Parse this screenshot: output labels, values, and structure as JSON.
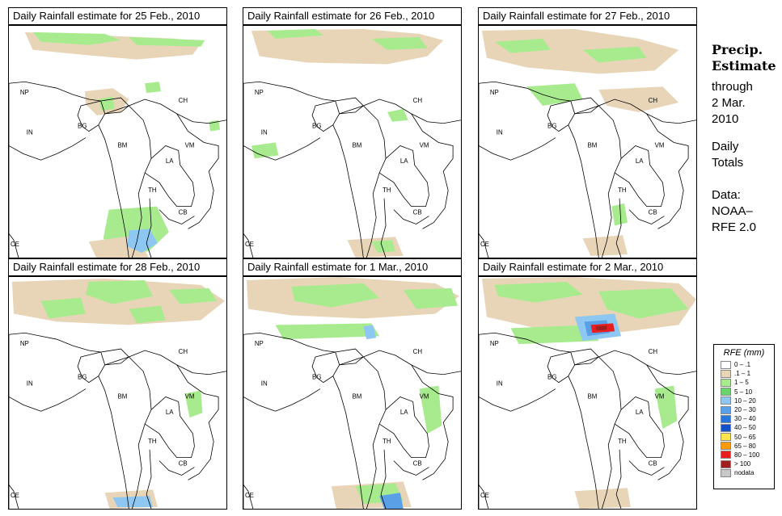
{
  "panels": [
    {
      "title": "Daily Rainfall estimate for  25 Feb., 2010",
      "rain": [
        [
          "#e8d5b7",
          "M20 8 L210 16 L240 22 L230 36 L160 42 L90 36 L30 30 Z"
        ],
        [
          "#a8eb8e",
          "M30 8 L120 10 L140 18 L100 24 L40 20 Z"
        ],
        [
          "#a8eb8e",
          "M150 14 L245 18 L240 26 L160 24 Z"
        ],
        [
          "#e8d5b7",
          "M95 82 L130 78 L150 92 L140 108 L110 112 L96 98 Z"
        ],
        [
          "#a8eb8e",
          "M112 92 L130 88 L132 104 L116 106 Z"
        ],
        [
          "#a8eb8e",
          "M125 230 L185 226 L200 258 L175 282 L140 286 L118 266 Z"
        ],
        [
          "#e8d5b7",
          "M100 270 L160 262 L175 290 L110 292 Z"
        ],
        [
          "#8ec8f2",
          "M150 256 L176 254 L186 272 L166 284 L148 276 Z"
        ],
        [
          "#a8eb8e",
          "M170 72 L188 70 L190 82 L172 84 Z"
        ],
        [
          "#a8eb8e",
          "M250 120 L262 118 L264 130 L252 132 Z"
        ]
      ]
    },
    {
      "title": "Daily Rainfall estimate for  26 Feb., 2010",
      "rain": [
        [
          "#e8d5b7",
          "M10 6 L150 4 L220 10 L250 18 L230 38 L180 48 L80 46 L20 38 Z"
        ],
        [
          "#a8eb8e",
          "M30 6 L90 4 L100 12 L40 16 Z"
        ],
        [
          "#a8eb8e",
          "M160 16 L220 14 L230 28 L180 30 Z"
        ],
        [
          "#a8eb8e",
          "M180 108 L200 104 L206 118 L186 120 Z"
        ],
        [
          "#a8eb8e",
          "M10 150 L40 146 L44 162 L14 166 Z"
        ],
        [
          "#e8d5b7",
          "M130 268 L190 264 L200 288 L140 290 Z"
        ],
        [
          "#a8eb8e",
          "M160 270 L186 268 L190 282 L168 284 Z"
        ]
      ]
    },
    {
      "title": "Daily Rainfall estimate for  27 Feb., 2010",
      "rain": [
        [
          "#e8d5b7",
          "M4 6 L120 4 L200 16 L250 30 L220 56 L150 60 L60 52 L10 40 Z"
        ],
        [
          "#a8eb8e",
          "M20 20 L80 16 L90 30 L40 34 Z"
        ],
        [
          "#a8eb8e",
          "M130 30 L200 26 L210 40 L150 46 Z"
        ],
        [
          "#a8eb8e",
          "M60 76 L120 72 L130 92 L80 100 Z"
        ],
        [
          "#e8d5b7",
          "M150 80 L230 76 L250 96 L200 108 L160 100 Z"
        ],
        [
          "#a8eb8e",
          "M166 226 L182 222 L186 246 L170 250 Z"
        ],
        [
          "#e8d5b7",
          "M130 266 L180 262 L186 286 L140 288 Z"
        ]
      ]
    },
    {
      "title": "Daily Rainfall estimate for  28 Feb., 2010",
      "rain": [
        [
          "#e8d5b7",
          "M4 6 L120 2 L240 10 L270 30 L240 54 L150 60 L60 56 L6 46 Z"
        ],
        [
          "#a8eb8e",
          "M100 6 L170 4 L180 24 L130 34 L96 22 Z"
        ],
        [
          "#a8eb8e",
          "M40 30 L90 26 L96 46 L50 52 Z"
        ],
        [
          "#a8eb8e",
          "M200 16 L250 14 L260 30 L214 34 Z"
        ],
        [
          "#a8eb8e",
          "M150 40 L190 36 L196 54 L160 58 Z"
        ],
        [
          "#a8eb8e",
          "M220 146 L240 142 L242 170 L226 176 Z"
        ],
        [
          "#e8d5b7",
          "M120 270 L180 266 L186 288 L126 290 Z"
        ],
        [
          "#8ec8f2",
          "M130 276 L176 274 L180 288 L136 288 Z"
        ]
      ]
    },
    {
      "title": "Daily Rainfall estimate for  1 Mar., 2010",
      "rain": [
        [
          "#e8d5b7",
          "M4 4 L120 0 L240 8 L270 24 L240 46 L150 52 L60 48 L6 40 Z"
        ],
        [
          "#a8eb8e",
          "M60 12 L150 8 L170 26 L110 38 L64 30 Z"
        ],
        [
          "#a8eb8e",
          "M200 16 L260 14 L268 36 L216 40 Z"
        ],
        [
          "#a8eb8e",
          "M40 60 L160 58 L170 74 L50 78 Z"
        ],
        [
          "#8ec8f2",
          "M150 62 L162 60 L166 76 L154 78 Z"
        ],
        [
          "#a8eb8e",
          "M220 140 L244 136 L248 186 L230 196 Z"
        ],
        [
          "#e8d5b7",
          "M110 262 L200 256 L210 288 L116 290 Z"
        ],
        [
          "#a8eb8e",
          "M140 262 L190 258 L200 280 L150 284 Z"
        ],
        [
          "#5aa0e6",
          "M170 274 L196 270 L200 290 L176 290 Z"
        ]
      ]
    },
    {
      "title": "Daily Rainfall estimate for  2 Mar., 2010",
      "rain": [
        [
          "#e8d5b7",
          "M4 2 L120 0 L250 8 L272 28 L250 60 L170 70 L80 66 L10 50 Z"
        ],
        [
          "#a8eb8e",
          "M20 10 L110 6 L130 22 L70 32 L24 24 Z"
        ],
        [
          "#a8eb8e",
          "M150 18 L240 14 L262 40 L200 52 L160 40 Z"
        ],
        [
          "#a8eb8e",
          "M40 64 L140 60 L150 80 L50 84 Z"
        ],
        [
          "#8ec8f2",
          "M120 50 L170 46 L178 74 L130 80 Z"
        ],
        [
          "#5aa0e6",
          "M132 56 L160 54 L164 70 L136 74 Z"
        ],
        [
          "#e81e1e",
          "M140 60 L168 58 L170 68 L142 70 Z"
        ],
        [
          "#a01e1e",
          "M146 62 L160 61 L160 66 L147 67 Z"
        ],
        [
          "#a8eb8e",
          "M220 140 L244 136 L248 180 L230 190 Z"
        ],
        [
          "#e8d5b7",
          "M120 268 L186 264 L190 288 L126 290 Z"
        ]
      ]
    }
  ],
  "labels": [
    "NP",
    "CH",
    "IN",
    "BG",
    "BM",
    "VM",
    "LA",
    "TH",
    "CB",
    "CE"
  ],
  "side": {
    "title_line1": "Precip.",
    "title_line2": "Estimate",
    "through": "through",
    "date_line1": "2 Mar.",
    "date_line2": "2010",
    "daily_line1": "Daily",
    "daily_line2": "Totals",
    "data_line1": "Data:",
    "data_line2": "NOAA–",
    "data_line3": "RFE 2.0"
  },
  "legend": {
    "title": "RFE (mm)",
    "items": [
      {
        "label": "0 – .1",
        "color": "#ffffff"
      },
      {
        "label": ".1 – 1",
        "color": "#e8d5b7"
      },
      {
        "label": "1 – 5",
        "color": "#a8eb8e"
      },
      {
        "label": "5 – 10",
        "color": "#6ad46a"
      },
      {
        "label": "10 – 20",
        "color": "#8ec8f2"
      },
      {
        "label": "20 – 30",
        "color": "#5aa0e6"
      },
      {
        "label": "30 – 40",
        "color": "#2878dc"
      },
      {
        "label": "40 – 50",
        "color": "#1450c8"
      },
      {
        "label": "50 – 65",
        "color": "#ffe650"
      },
      {
        "label": "65 – 80",
        "color": "#ff9b00"
      },
      {
        "label": "80 – 100",
        "color": "#e81e1e"
      },
      {
        "label": "> 100",
        "color": "#a01e1e"
      },
      {
        "label": "nodata",
        "color": "#c8c8c8"
      }
    ]
  }
}
